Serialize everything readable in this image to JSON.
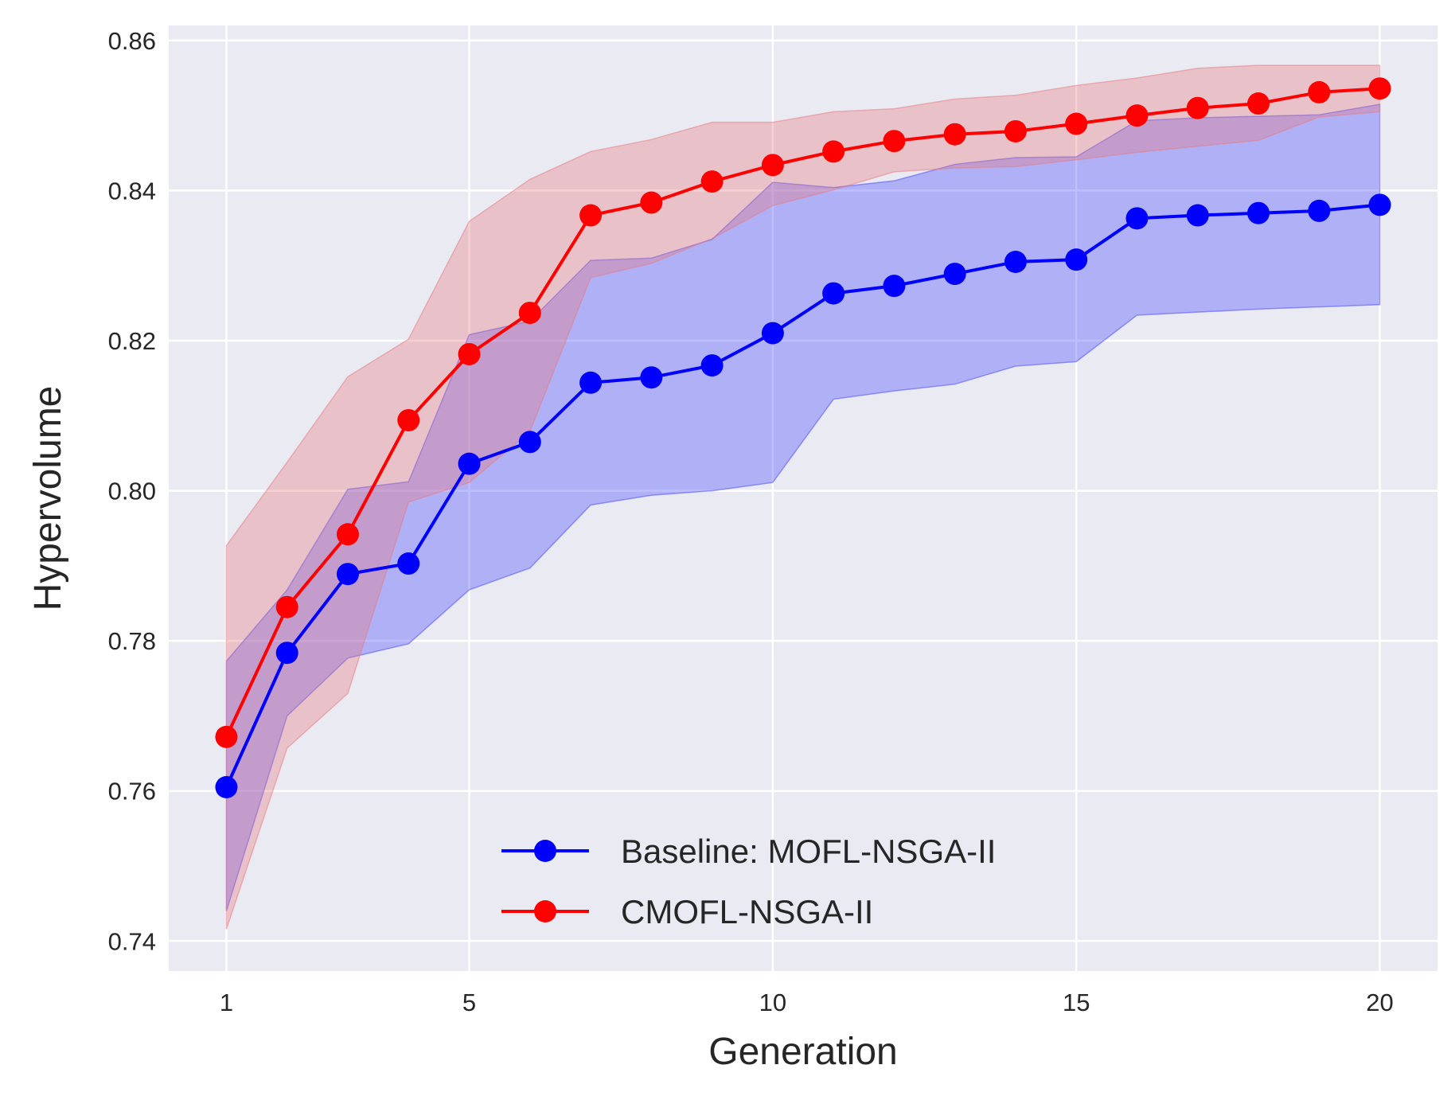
{
  "chart_data": {
    "type": "line",
    "title": "",
    "xlabel": "Generation",
    "ylabel": "Hypervolume",
    "xlim": [
      0.05,
      20.95
    ],
    "ylim": [
      0.736,
      0.862
    ],
    "xticks": [
      1,
      5,
      10,
      15,
      20
    ],
    "yticks": [
      0.74,
      0.76,
      0.78,
      0.8,
      0.82,
      0.84,
      0.86
    ],
    "ytick_labels": [
      "0.74",
      "0.76",
      "0.78",
      "0.80",
      "0.82",
      "0.84",
      "0.86"
    ],
    "grid": true,
    "legend_position": "lower-center",
    "series": [
      {
        "name": "Baseline: MOFL-NSGA-II",
        "color": "#0000ff",
        "band_color": "#4444ff",
        "x": [
          1,
          2,
          3,
          4,
          5,
          6,
          7,
          8,
          9,
          10,
          11,
          12,
          13,
          14,
          15,
          16,
          17,
          18,
          19,
          20
        ],
        "values": [
          0.7605,
          0.7784,
          0.7889,
          0.7903,
          0.8036,
          0.8065,
          0.8144,
          0.8151,
          0.8167,
          0.821,
          0.8263,
          0.8273,
          0.8289,
          0.8305,
          0.8308,
          0.8363,
          0.8367,
          0.837,
          0.8373,
          0.8381
        ],
        "lower": [
          0.744,
          0.77,
          0.7777,
          0.7796,
          0.7868,
          0.7897,
          0.7981,
          0.7994,
          0.8,
          0.8011,
          0.8122,
          0.8133,
          0.8142,
          0.8166,
          0.8172,
          0.8234,
          0.8238,
          0.8242,
          0.8245,
          0.8248
        ],
        "upper": [
          0.7773,
          0.7868,
          0.8002,
          0.8012,
          0.8208,
          0.8226,
          0.8307,
          0.831,
          0.8335,
          0.8411,
          0.8404,
          0.8413,
          0.8435,
          0.8444,
          0.8445,
          0.8493,
          0.8497,
          0.8499,
          0.8501,
          0.8515
        ]
      },
      {
        "name": "CMOFL-NSGA-II",
        "color": "#ff0000",
        "band_color": "#e8797f",
        "x": [
          1,
          2,
          3,
          4,
          5,
          6,
          7,
          8,
          9,
          10,
          11,
          12,
          13,
          14,
          15,
          16,
          17,
          18,
          19,
          20
        ],
        "values": [
          0.7672,
          0.7845,
          0.7942,
          0.8094,
          0.8182,
          0.8237,
          0.8367,
          0.8384,
          0.8412,
          0.8434,
          0.8452,
          0.8466,
          0.8475,
          0.8479,
          0.8489,
          0.85,
          0.851,
          0.8516,
          0.8531,
          0.8536
        ],
        "lower": [
          0.7416,
          0.7657,
          0.773,
          0.7985,
          0.8011,
          0.8079,
          0.8284,
          0.8303,
          0.8336,
          0.838,
          0.8401,
          0.8425,
          0.843,
          0.8432,
          0.8441,
          0.8451,
          0.8459,
          0.8467,
          0.8498,
          0.8505
        ],
        "upper": [
          0.7927,
          0.8038,
          0.8152,
          0.8202,
          0.8359,
          0.8415,
          0.8452,
          0.8468,
          0.8491,
          0.8491,
          0.8505,
          0.8509,
          0.8522,
          0.8527,
          0.854,
          0.855,
          0.8563,
          0.8567,
          0.8567,
          0.8567
        ]
      }
    ]
  }
}
